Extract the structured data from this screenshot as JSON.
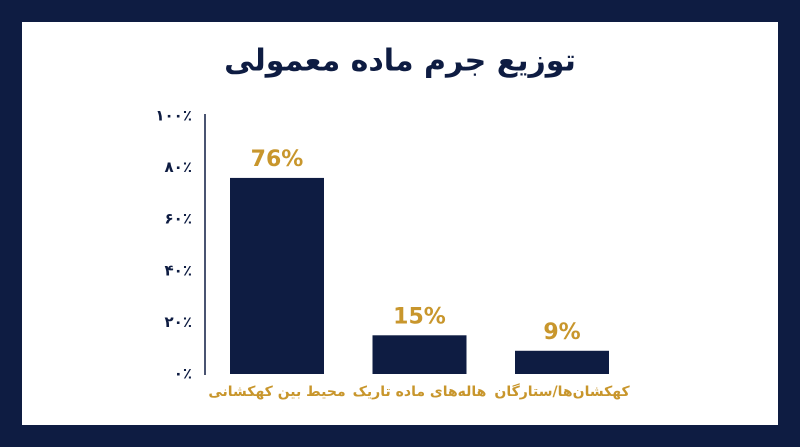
{
  "chart_data": {
    "type": "bar",
    "title": "توزیع جرم ماده معمولی",
    "categories": [
      "محیط بین کهکشانی",
      "هاله‌های ماده تاریک",
      "کهکشان‌ها/ستارگان"
    ],
    "values": [
      76,
      15,
      9
    ],
    "value_labels": [
      "76%",
      "15%",
      "9%"
    ],
    "color": "#0e1c42",
    "label_color": "#c8962c",
    "ylim": [
      0,
      100
    ],
    "yticks": [
      {
        "value": 0,
        "label": "۰٪"
      },
      {
        "value": 20,
        "label": "۲۰٪"
      },
      {
        "value": 40,
        "label": "۴۰٪"
      },
      {
        "value": 60,
        "label": "۶۰٪"
      },
      {
        "value": 80,
        "label": "۸۰٪"
      },
      {
        "value": 100,
        "label": "۱۰۰٪"
      }
    ],
    "grid": false
  }
}
